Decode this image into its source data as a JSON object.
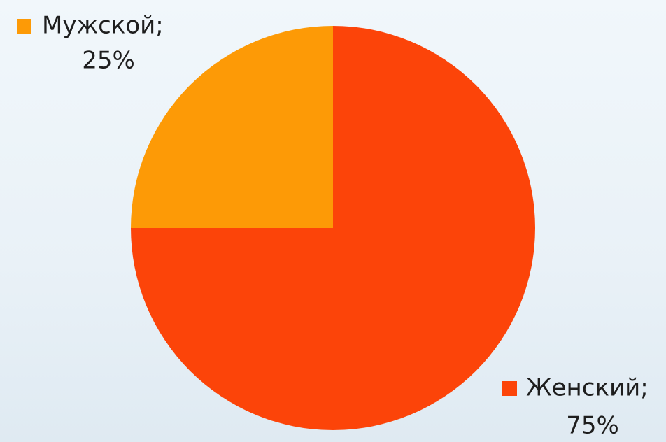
{
  "chart_data": {
    "type": "pie",
    "categories": [
      "Женский;",
      "Мужской;"
    ],
    "values": [
      75,
      25
    ],
    "value_labels": [
      "75%",
      "25%"
    ],
    "colors": [
      "#fc4409",
      "#fd9a06"
    ]
  }
}
